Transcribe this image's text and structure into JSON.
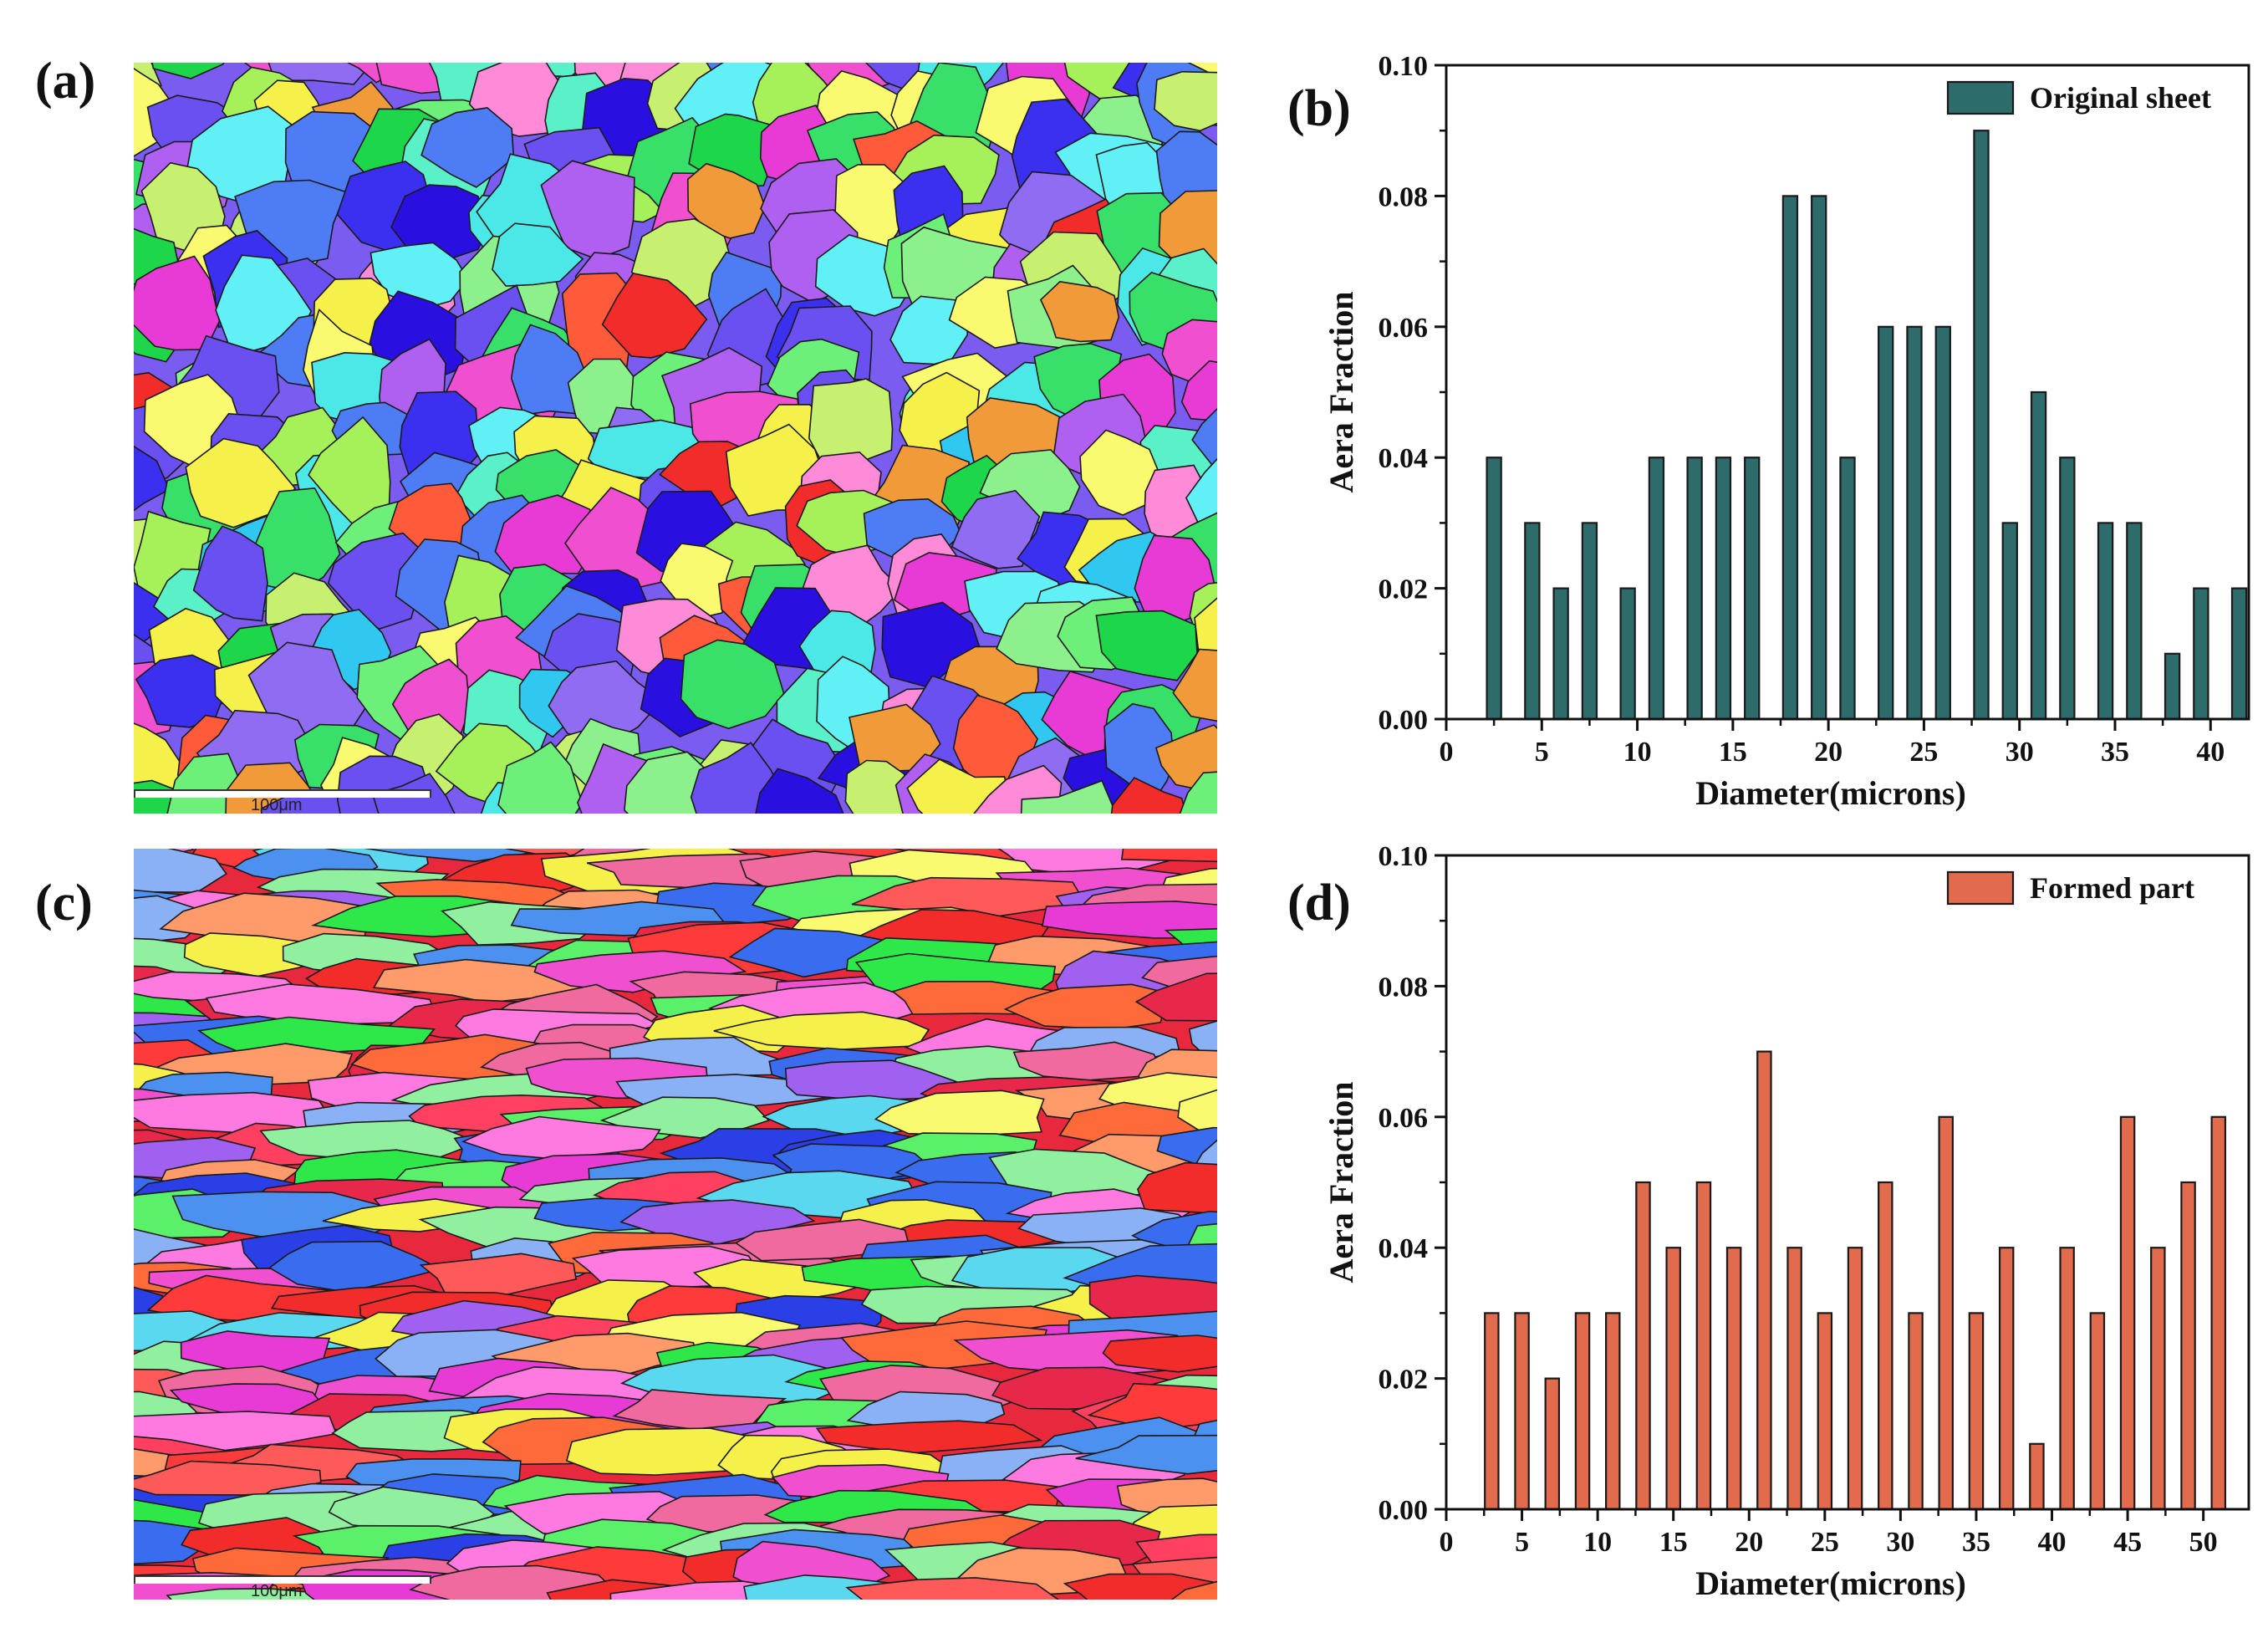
{
  "panels": {
    "a": {
      "label": "(a)",
      "scale_text": "100μm"
    },
    "b": {
      "label": "(b)"
    },
    "c": {
      "label": "(c)",
      "scale_text": "100μm"
    },
    "d": {
      "label": "(d)"
    }
  },
  "colors": {
    "original_bar": "#2e6b6b",
    "formed_bar": "#e36b4d"
  },
  "chart_data": [
    {
      "id": "b",
      "type": "bar",
      "legend": "Original sheet",
      "legend_position": "top-right",
      "xlabel": "Diameter(microns)",
      "ylabel": "Aera Fraction",
      "xlim": [
        0,
        42
      ],
      "ylim": [
        0,
        0.1
      ],
      "xticks": [
        0,
        5,
        10,
        15,
        20,
        25,
        30,
        35,
        40
      ],
      "xtick_labels": [
        "0",
        "5",
        "10",
        "15",
        "20",
        "25",
        "30",
        "35",
        "40"
      ],
      "yticks": [
        0,
        0.02,
        0.04,
        0.06,
        0.08,
        0.1
      ],
      "ytick_labels": [
        "0.00",
        "0.02",
        "0.04",
        "0.06",
        "0.08",
        "0.10"
      ],
      "x": [
        2.5,
        4.5,
        6.0,
        7.5,
        9.5,
        11.0,
        13.0,
        14.5,
        16.0,
        18.0,
        19.5,
        21.0,
        23.0,
        24.5,
        26.0,
        28.0,
        29.5,
        31.0,
        32.5,
        34.5,
        36.0,
        38.0,
        39.5,
        41.5
      ],
      "values": [
        0.04,
        0.03,
        0.02,
        0.03,
        0.02,
        0.04,
        0.04,
        0.04,
        0.04,
        0.08,
        0.08,
        0.04,
        0.06,
        0.06,
        0.06,
        0.09,
        0.03,
        0.05,
        0.04,
        0.03,
        0.03,
        0.01,
        0.02,
        0.02
      ],
      "bar_width": 0.75
    },
    {
      "id": "d",
      "type": "bar",
      "legend": "Formed part",
      "legend_position": "top-right",
      "xlabel": "Diameter(microns)",
      "ylabel": "Aera Fraction",
      "xlim": [
        0,
        53
      ],
      "ylim": [
        0,
        0.1
      ],
      "xticks": [
        0,
        5,
        10,
        15,
        20,
        25,
        30,
        35,
        40,
        45,
        50
      ],
      "xtick_labels": [
        "0",
        "5",
        "10",
        "15",
        "20",
        "25",
        "30",
        "35",
        "40",
        "45",
        "50"
      ],
      "yticks": [
        0,
        0.02,
        0.04,
        0.06,
        0.08,
        0.1
      ],
      "ytick_labels": [
        "0.00",
        "0.02",
        "0.04",
        "0.06",
        "0.08",
        "0.10"
      ],
      "x": [
        3.0,
        5.0,
        7.0,
        9.0,
        11.0,
        13.0,
        15.0,
        17.0,
        19.0,
        21.0,
        23.0,
        25.0,
        27.0,
        29.0,
        31.0,
        33.0,
        35.0,
        37.0,
        39.0,
        41.0,
        43.0,
        45.0,
        47.0,
        49.0,
        51.0
      ],
      "values": [
        0.03,
        0.03,
        0.02,
        0.03,
        0.03,
        0.05,
        0.04,
        0.05,
        0.04,
        0.07,
        0.04,
        0.03,
        0.04,
        0.05,
        0.03,
        0.06,
        0.03,
        0.04,
        0.01,
        0.04,
        0.03,
        0.06,
        0.04,
        0.05,
        0.06
      ],
      "bar_width": 0.9
    }
  ]
}
